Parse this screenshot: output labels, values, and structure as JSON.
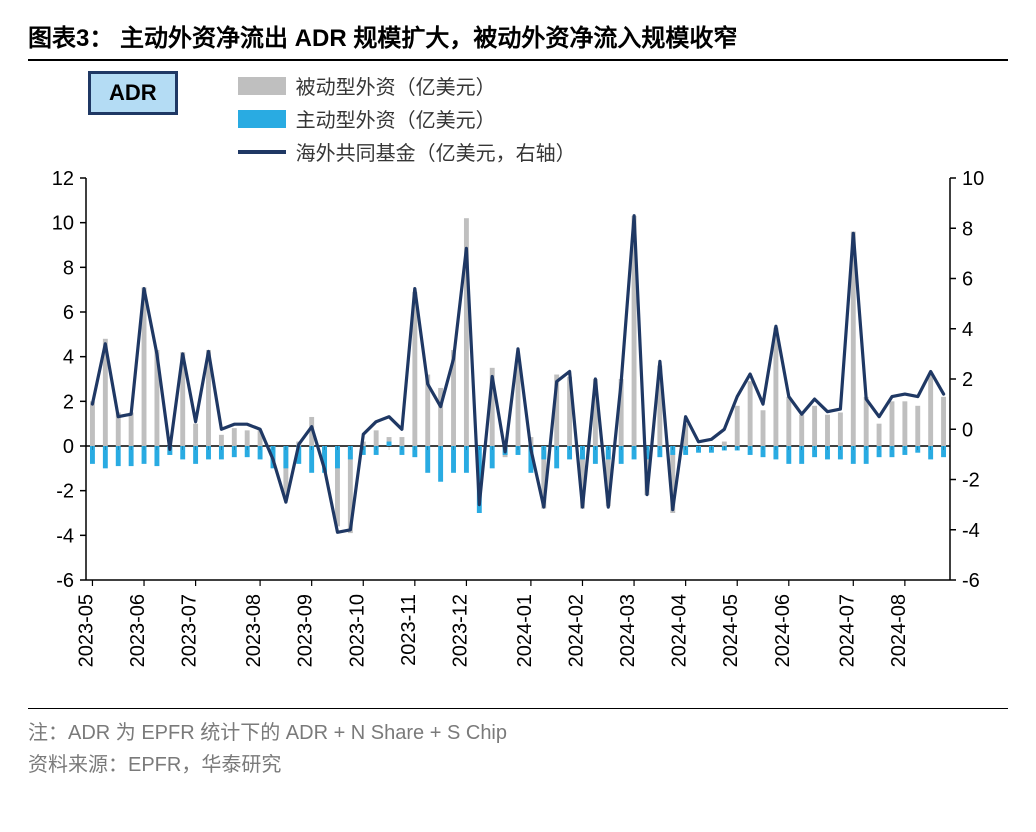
{
  "title": "图表3： 主动外资净流出 ADR 规模扩大，被动外资净流入规模收窄",
  "badge": "ADR",
  "legend": {
    "passive": "被动型外资（亿美元）",
    "active": "主动型外资（亿美元）",
    "fund": "海外共同基金（亿美元，右轴）"
  },
  "footnote1": "注：ADR 为 EPFR 统计下的 ADR + N Share + S Chip",
  "footnote2": "资料来源：EPFR，华泰研究",
  "chart": {
    "type": "bar+line-dual-axis",
    "background_color": "#ffffff",
    "axis_color": "#000000",
    "tick_fontsize": 20,
    "label_fontsize": 20,
    "left_axis": {
      "min": -6,
      "max": 12,
      "step": 2
    },
    "right_axis": {
      "min": -6,
      "max": 10,
      "step": 2
    },
    "x_labels": [
      "2023-05",
      "2023-06",
      "2023-07",
      "2023-08",
      "2023-09",
      "2023-10",
      "2023-11",
      "2023-12",
      "2024-01",
      "2024-02",
      "2024-03",
      "2024-04",
      "2024-05",
      "2024-06",
      "2024-07",
      "2024-08"
    ],
    "series": {
      "passive": {
        "color": "#bfbfbf",
        "bar_width": 0.38,
        "values": [
          2.0,
          4.8,
          1.5,
          1.5,
          7.1,
          4.3,
          -0.4,
          4.2,
          1.0,
          4.3,
          0.5,
          0.8,
          0.7,
          0.7,
          -0.3,
          -2.2,
          0.2,
          1.3,
          -0.6,
          -3.6,
          -3.9,
          0.2,
          0.7,
          0.4,
          0.4,
          6.9,
          3.2,
          2.6,
          4.3,
          10.2,
          -0.2,
          3.5,
          -0.5,
          4.0,
          0.4,
          -2.8,
          3.2,
          3.1,
          -2.8,
          3.0,
          -2.7,
          3.0,
          10.3,
          -2.2,
          3.6,
          -3.0,
          1.0,
          -0.2,
          -0.15,
          0.2,
          1.8,
          2.9,
          1.6,
          5.3,
          2.2,
          1.4,
          1.8,
          1.4,
          1.5,
          9.6,
          2.2,
          1.0,
          2.0,
          2.0,
          1.8,
          3.2,
          2.2
        ]
      },
      "active": {
        "color": "#29abe2",
        "bar_width": 0.38,
        "values": [
          -0.8,
          -1.0,
          -0.9,
          -0.9,
          -0.8,
          -0.9,
          -0.4,
          -0.6,
          -0.8,
          -0.6,
          -0.6,
          -0.5,
          -0.5,
          -0.6,
          -1.0,
          -1.0,
          -0.8,
          -1.2,
          -1.2,
          -1.0,
          -0.6,
          -0.4,
          -0.4,
          0.2,
          -0.4,
          -0.5,
          -1.2,
          -1.6,
          -1.2,
          -1.2,
          -3.0,
          -1.0,
          -0.4,
          -0.4,
          -1.2,
          -0.6,
          -1.0,
          -0.6,
          -0.6,
          -0.8,
          -0.6,
          -0.8,
          -0.6,
          -0.6,
          -0.5,
          -0.4,
          -0.4,
          -0.3,
          -0.3,
          -0.2,
          -0.2,
          -0.4,
          -0.5,
          -0.6,
          -0.8,
          -0.8,
          -0.5,
          -0.6,
          -0.6,
          -0.8,
          -0.8,
          -0.5,
          -0.5,
          -0.4,
          -0.3,
          -0.6,
          -0.5
        ]
      },
      "fund": {
        "color": "#1f3864",
        "line_width": 3.2,
        "values": [
          1.0,
          3.4,
          0.5,
          0.6,
          5.6,
          3.0,
          -0.8,
          3.0,
          0.3,
          3.1,
          0.0,
          0.2,
          0.2,
          0.0,
          -1.2,
          -2.9,
          -0.6,
          0.1,
          -1.6,
          -4.1,
          -4.0,
          -0.2,
          0.3,
          0.5,
          0.0,
          5.6,
          1.8,
          0.9,
          2.8,
          7.2,
          -3.0,
          2.1,
          -0.9,
          3.2,
          -0.8,
          -3.1,
          1.9,
          2.3,
          -3.1,
          2.0,
          -3.1,
          1.9,
          8.5,
          -2.6,
          2.7,
          -3.2,
          0.5,
          -0.5,
          -0.4,
          0.0,
          1.3,
          2.2,
          1.0,
          4.1,
          1.3,
          0.6,
          1.2,
          0.7,
          0.8,
          7.8,
          1.2,
          0.5,
          1.3,
          1.4,
          1.3,
          2.3,
          1.4
        ]
      }
    }
  }
}
